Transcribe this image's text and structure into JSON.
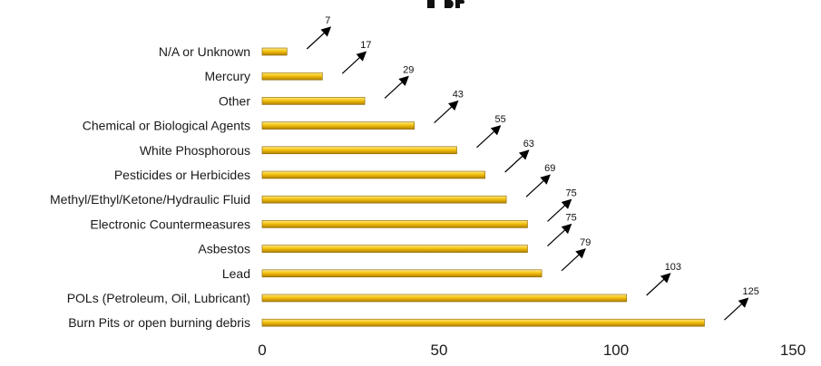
{
  "chart_data": {
    "type": "bar",
    "orientation": "horizontal",
    "categories": [
      "N/A or Unknown",
      "Mercury",
      "Other",
      "Chemical or Biological Agents",
      "White Phosphorous",
      "Pesticides or Herbicides",
      "Methyl/Ethyl/Ketone/Hydraulic Fluid",
      "Electronic Countermeasures",
      "Asbestos",
      "Lead",
      "POLs (Petroleum, Oil, Lubricant)",
      "Burn Pits or open burning debris"
    ],
    "values": [
      7,
      17,
      29,
      43,
      55,
      63,
      69,
      75,
      75,
      79,
      103,
      125
    ],
    "xlim": [
      0,
      150
    ],
    "xticks": [
      0,
      50,
      100,
      150
    ],
    "grid": false,
    "legend": "none",
    "colors": {
      "bar_light": "#fde98a",
      "bar_mid": "#f4c20d",
      "bar_dark": "#b07e00",
      "bar_edge": "#8c6400",
      "arrow": "#000000"
    }
  }
}
